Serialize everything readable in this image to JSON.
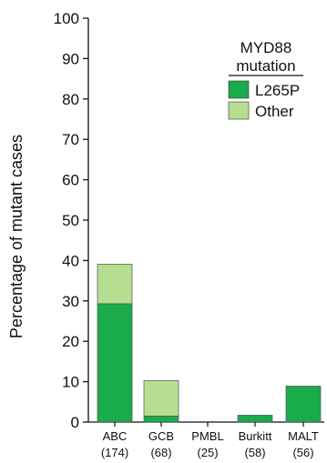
{
  "chart_data": {
    "type": "bar",
    "stacked": true,
    "categories": [
      "ABC",
      "GCB",
      "PMBL",
      "Burkitt",
      "MALT"
    ],
    "category_counts": [
      "(174)",
      "(68)",
      "(25)",
      "(58)",
      "(56)"
    ],
    "series": [
      {
        "name": "L265P",
        "values": [
          29.3,
          1.5,
          0,
          1.7,
          8.9
        ],
        "color": "#1aab4b"
      },
      {
        "name": "Other",
        "values": [
          9.8,
          8.8,
          0,
          0,
          0
        ],
        "color": "#b5de91"
      }
    ],
    "ylabel": "Percentage of mutant cases",
    "xlabel": "",
    "ylim": [
      0,
      100
    ],
    "yticks": [
      0,
      10,
      20,
      30,
      40,
      50,
      60,
      70,
      80,
      90,
      100
    ],
    "grid": false,
    "legend": {
      "title_line1": "MYD88",
      "title_line2": "mutation",
      "placement": "top-right"
    }
  }
}
